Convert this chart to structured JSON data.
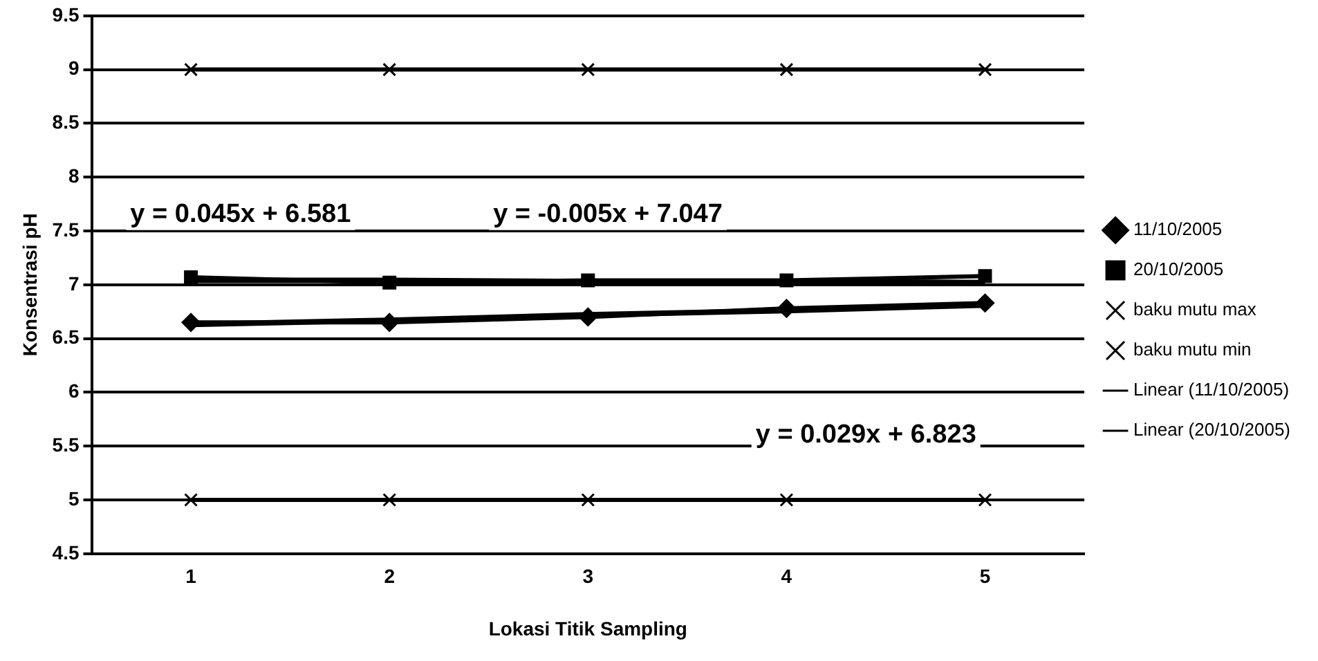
{
  "chart_data": {
    "type": "line",
    "xlabel": "Lokasi Titik Sampling",
    "ylabel": "Konsentrasi pH",
    "categories": [
      "1",
      "2",
      "3",
      "4",
      "5"
    ],
    "series": [
      {
        "name": "11/10/2005",
        "color": "#000000",
        "marker": "diamond",
        "values": [
          6.65,
          6.65,
          6.7,
          6.78,
          6.83
        ]
      },
      {
        "name": "20/10/2005",
        "color": "#000000",
        "marker": "square",
        "values": [
          7.07,
          7.02,
          7.04,
          7.04,
          7.08
        ]
      },
      {
        "name": "baku mutu max",
        "color": "#000000",
        "marker": "cross",
        "values": [
          9,
          9,
          9,
          9,
          9
        ]
      },
      {
        "name": "baku mutu min",
        "color": "#000000",
        "marker": "cross",
        "values": [
          5,
          5,
          5,
          5,
          5
        ]
      },
      {
        "name": "Linear (11/10/2005)",
        "color": "#000000",
        "marker": "none",
        "x": [
          "1",
          "2",
          "3",
          "4",
          "5"
        ],
        "values": [
          6.63,
          6.67,
          6.72,
          6.76,
          6.81
        ]
      },
      {
        "name": "Linear (20/10/2005)",
        "color": "#000000",
        "marker": "none",
        "x": [
          "1",
          "2",
          "3",
          "4",
          "5"
        ],
        "values": [
          7.04,
          7.04,
          7.03,
          7.03,
          7.02
        ]
      }
    ],
    "ylim": [
      4.5,
      9.5
    ],
    "yticks": [
      4.5,
      5,
      5.5,
      6,
      6.5,
      7,
      7.5,
      8,
      8.5,
      9,
      9.5
    ],
    "annotations": [
      "y = 0.045x + 6.581",
      "y = -0.005x + 7.047",
      "y = 0.029x + 6.823"
    ],
    "grid": "y",
    "legend": "right"
  }
}
